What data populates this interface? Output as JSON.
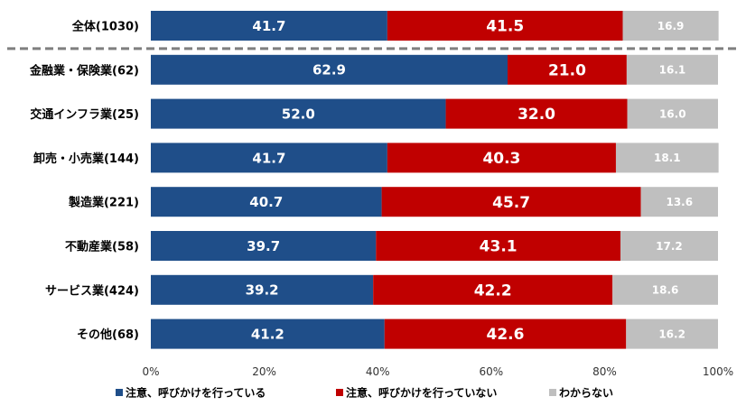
{
  "chart_data": {
    "type": "bar",
    "orientation": "horizontal",
    "stacked": true,
    "percent_stacked": true,
    "categories": [
      "全体(1030)",
      "金融業・保険業(62)",
      "交通インフラ業(25)",
      "卸売・小売業(144)",
      "製造業(221)",
      "不動産業(58)",
      "サービス業(424)",
      "その他(68)"
    ],
    "series": [
      {
        "name": "注意、呼びかけを行っている",
        "color": "#1f4e89",
        "values": [
          41.7,
          62.9,
          52.0,
          41.7,
          40.7,
          39.7,
          39.2,
          41.2
        ]
      },
      {
        "name": "注意、呼びかけを行っていない",
        "color": "#c00000",
        "values": [
          41.5,
          21.0,
          32.0,
          40.3,
          45.7,
          43.1,
          42.2,
          42.6
        ]
      },
      {
        "name": "わからない",
        "color": "#bfbfbf",
        "values": [
          16.9,
          16.1,
          16.0,
          18.1,
          13.6,
          17.2,
          18.6,
          16.2
        ]
      }
    ],
    "xlim": [
      0,
      100
    ],
    "x_ticks": [
      "0%",
      "20%",
      "40%",
      "60%",
      "80%",
      "100%"
    ],
    "legend_position": "bottom",
    "separator_after_first_row": true
  }
}
